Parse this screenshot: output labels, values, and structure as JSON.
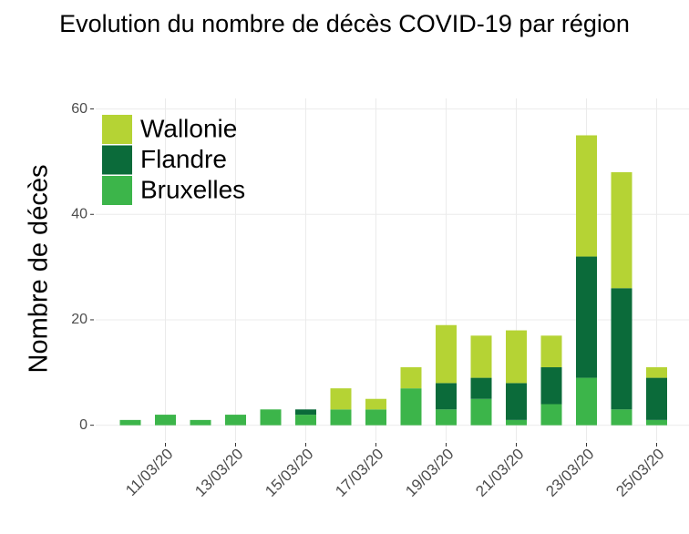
{
  "chart_data": {
    "type": "stacked_bar",
    "title": "Evolution du nombre de décès COVID-19 par région",
    "y_label": "Nombre de décès",
    "categories": [
      null,
      "11/03/20",
      null,
      "13/03/20",
      null,
      "15/03/20",
      null,
      "17/03/20",
      null,
      "19/03/20",
      null,
      "21/03/20",
      null,
      "23/03/20",
      null,
      "25/03/20"
    ],
    "series": [
      {
        "name": "Wallonie",
        "color": "#b5d334",
        "values": [
          0,
          0,
          0,
          0,
          0,
          0,
          4,
          2,
          4,
          11,
          8,
          10,
          6,
          23,
          22,
          2
        ]
      },
      {
        "name": "Flandre",
        "color": "#0b6b3a",
        "values": [
          0,
          0,
          0,
          0,
          0,
          1,
          0,
          0,
          0,
          5,
          4,
          7,
          7,
          23,
          23,
          8
        ]
      },
      {
        "name": "Bruxelles",
        "color": "#3cb54a",
        "values": [
          1,
          2,
          1,
          2,
          3,
          2,
          3,
          3,
          7,
          3,
          5,
          1,
          4,
          9,
          3,
          1
        ]
      }
    ],
    "ylim": [
      -3,
      62
    ],
    "yticks": [
      0,
      20,
      40,
      60
    ],
    "grid": true,
    "legend": "top-left"
  }
}
